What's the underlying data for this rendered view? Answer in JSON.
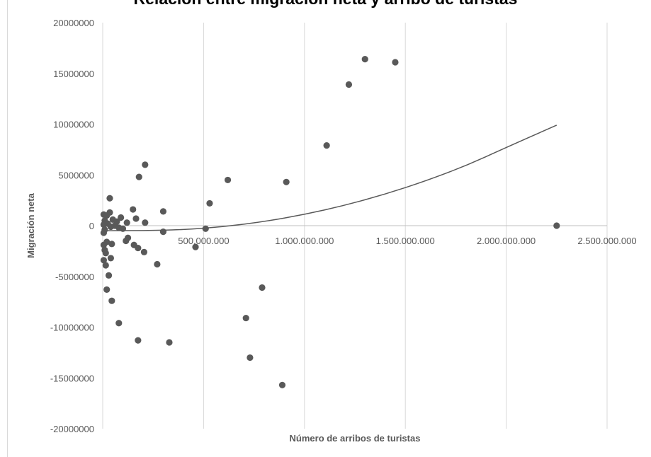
{
  "chart_data": {
    "type": "scatter",
    "title": "Relación entre migración neta y arribo de turistas",
    "xlabel": "Número de arribos de turistas",
    "ylabel": "Migración neta",
    "xlim": [
      0,
      2500000000
    ],
    "ylim": [
      -20000000,
      20000000
    ],
    "x_ticks": [
      {
        "value": 500000000,
        "label": "500.000.000"
      },
      {
        "value": 1000000000,
        "label": "1.000.000.000"
      },
      {
        "value": 1500000000,
        "label": "1.500.000.000"
      },
      {
        "value": 2000000000,
        "label": "2.000.000.000"
      },
      {
        "value": 2500000000,
        "label": "2.500.000.000"
      }
    ],
    "y_ticks": [
      {
        "value": 20000000,
        "label": "20000000"
      },
      {
        "value": 15000000,
        "label": "15000000"
      },
      {
        "value": 10000000,
        "label": "10000000"
      },
      {
        "value": 5000000,
        "label": "5000000"
      },
      {
        "value": 0,
        "label": "0"
      },
      {
        "value": -5000000,
        "label": "-5000000"
      },
      {
        "value": -10000000,
        "label": "-10000000"
      },
      {
        "value": -15000000,
        "label": "-15000000"
      },
      {
        "value": -20000000,
        "label": "-20000000"
      }
    ],
    "grid": "vertical",
    "marker_color": "#595959",
    "trendline": {
      "type": "polynomial",
      "color": "#595959",
      "x_range": [
        0,
        2250000000
      ],
      "points": [
        [
          0,
          -500000
        ],
        [
          200000000,
          -480000
        ],
        [
          400000000,
          -400000
        ],
        [
          600000000,
          -100000
        ],
        [
          800000000,
          400000
        ],
        [
          1000000000,
          1100000
        ],
        [
          1200000000,
          2000000
        ],
        [
          1400000000,
          3100000
        ],
        [
          1600000000,
          4400000
        ],
        [
          1800000000,
          5900000
        ],
        [
          2000000000,
          7700000
        ],
        [
          2250000000,
          9900000
        ]
      ]
    },
    "points": [
      {
        "x": 1300000000,
        "y": 16400000
      },
      {
        "x": 1450000000,
        "y": 16100000
      },
      {
        "x": 1220000000,
        "y": 13900000
      },
      {
        "x": 1110000000,
        "y": 7900000
      },
      {
        "x": 210000000,
        "y": 6000000
      },
      {
        "x": 180000000,
        "y": 4800000
      },
      {
        "x": 620000000,
        "y": 4500000
      },
      {
        "x": 910000000,
        "y": 4300000
      },
      {
        "x": 35000000,
        "y": 2700000
      },
      {
        "x": 530000000,
        "y": 2200000
      },
      {
        "x": 150000000,
        "y": 1600000
      },
      {
        "x": 300000000,
        "y": 1400000
      },
      {
        "x": 35000000,
        "y": 1300000
      },
      {
        "x": 5000000,
        "y": 1100000
      },
      {
        "x": 20000000,
        "y": 1000000
      },
      {
        "x": 90000000,
        "y": 800000
      },
      {
        "x": 165000000,
        "y": 700000
      },
      {
        "x": 50000000,
        "y": 600000
      },
      {
        "x": 10000000,
        "y": 500000
      },
      {
        "x": 70000000,
        "y": 400000
      },
      {
        "x": 120000000,
        "y": 300000
      },
      {
        "x": 210000000,
        "y": 300000
      },
      {
        "x": 25000000,
        "y": 200000
      },
      {
        "x": 5000000,
        "y": 100000
      },
      {
        "x": 60000000,
        "y": 0
      },
      {
        "x": 40000000,
        "y": -100000
      },
      {
        "x": 80000000,
        "y": -200000
      },
      {
        "x": 100000000,
        "y": -300000
      },
      {
        "x": 510000000,
        "y": -300000
      },
      {
        "x": 10000000,
        "y": -400000
      },
      {
        "x": 300000000,
        "y": -600000
      },
      {
        "x": 5000000,
        "y": -700000
      },
      {
        "x": 125000000,
        "y": -1200000
      },
      {
        "x": 115000000,
        "y": -1500000
      },
      {
        "x": 20000000,
        "y": -1600000
      },
      {
        "x": 45000000,
        "y": -1800000
      },
      {
        "x": 5000000,
        "y": -1900000
      },
      {
        "x": 155000000,
        "y": -1900000
      },
      {
        "x": 460000000,
        "y": -2100000
      },
      {
        "x": 175000000,
        "y": -2200000
      },
      {
        "x": 10000000,
        "y": -2400000
      },
      {
        "x": 205000000,
        "y": -2600000
      },
      {
        "x": 15000000,
        "y": -2700000
      },
      {
        "x": 40000000,
        "y": -3200000
      },
      {
        "x": 5000000,
        "y": -3400000
      },
      {
        "x": 270000000,
        "y": -3800000
      },
      {
        "x": 15000000,
        "y": -3900000
      },
      {
        "x": 30000000,
        "y": -4900000
      },
      {
        "x": 790000000,
        "y": -6100000
      },
      {
        "x": 20000000,
        "y": -6300000
      },
      {
        "x": 45000000,
        "y": -7400000
      },
      {
        "x": 710000000,
        "y": -9100000
      },
      {
        "x": 80000000,
        "y": -9600000
      },
      {
        "x": 175000000,
        "y": -11300000
      },
      {
        "x": 330000000,
        "y": -11500000
      },
      {
        "x": 730000000,
        "y": -13000000
      },
      {
        "x": 890000000,
        "y": -15700000
      },
      {
        "x": 2250000000,
        "y": 0
      }
    ]
  }
}
